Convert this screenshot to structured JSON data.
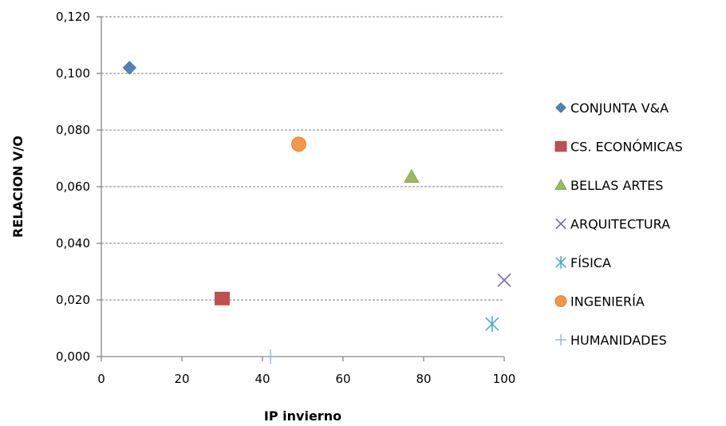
{
  "chart_data": {
    "type": "scatter",
    "xlabel": "IP invierno",
    "ylabel": "RELACION V/O",
    "xlim": [
      0,
      100
    ],
    "ylim": [
      0,
      0.12
    ],
    "x_ticks": [
      0,
      20,
      40,
      60,
      80,
      100
    ],
    "y_ticks": [
      0,
      0.02,
      0.04,
      0.06,
      0.08,
      0.1,
      0.12
    ],
    "x_tick_labels": [
      "0",
      "20",
      "40",
      "60",
      "80",
      "100"
    ],
    "y_tick_labels": [
      "0,000",
      "0,020",
      "0,040",
      "0,060",
      "0,080",
      "0,100",
      "0,120"
    ],
    "grid": "horizontal-dashed",
    "legend_position": "right",
    "series": [
      {
        "name": "CONJUNTA V&A",
        "marker": "diamond",
        "color": "#4f81bd",
        "x": [
          7
        ],
        "y": [
          0.102
        ]
      },
      {
        "name": "CS. ECONÓMICAS",
        "marker": "square",
        "color": "#c0504d",
        "x": [
          30
        ],
        "y": [
          0.0205
        ]
      },
      {
        "name": "BELLAS ARTES",
        "marker": "triangle",
        "color": "#9bbb59",
        "x": [
          77
        ],
        "y": [
          0.0635
        ]
      },
      {
        "name": "ARQUITECTURA",
        "marker": "x",
        "color": "#8064a2",
        "x": [
          100
        ],
        "y": [
          0.027
        ]
      },
      {
        "name": "FÍSICA",
        "marker": "asterisk",
        "color": "#4bacc6",
        "x": [
          97
        ],
        "y": [
          0.0115
        ]
      },
      {
        "name": "INGENIERÍA",
        "marker": "circle",
        "color": "#f79646",
        "x": [
          49
        ],
        "y": [
          0.075
        ]
      },
      {
        "name": "HUMANIDADES",
        "marker": "plus",
        "color": "#95b3d7",
        "x": [
          42
        ],
        "y": [
          0.0
        ]
      }
    ]
  }
}
